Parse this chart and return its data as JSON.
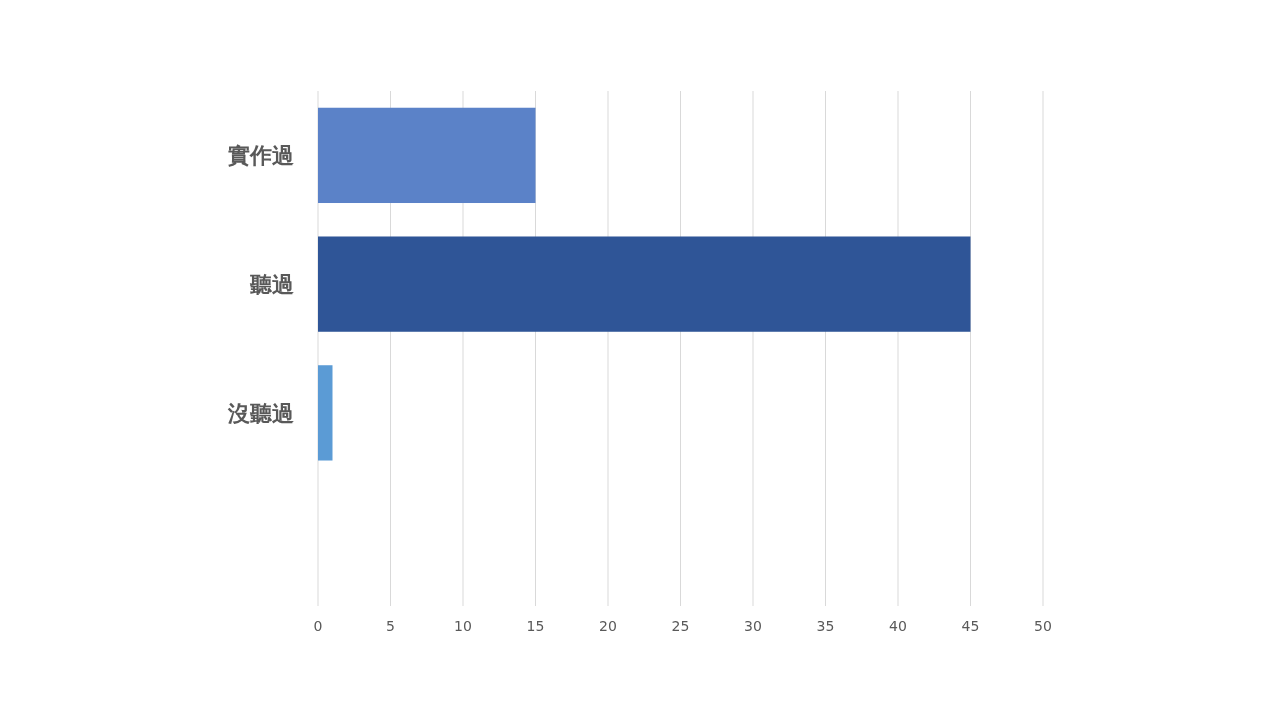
{
  "chart_data": {
    "type": "bar",
    "orientation": "horizontal",
    "categories": [
      "實作過",
      "聽過",
      "沒聽過",
      null
    ],
    "values": [
      15,
      45,
      1,
      null
    ],
    "colors": [
      "#5b82c8",
      "#2f5597",
      "#5b9bd5",
      null
    ],
    "xlim": [
      0,
      50
    ],
    "xticks": [
      0,
      5,
      10,
      15,
      20,
      25,
      30,
      35,
      40,
      45,
      50
    ],
    "grid": "x"
  }
}
